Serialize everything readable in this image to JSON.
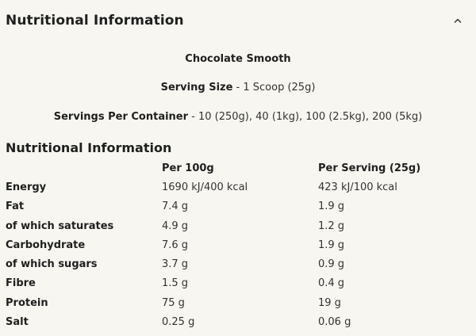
{
  "accordion": {
    "title": "Nutritional Information",
    "toggle_icon": "chevron-up-icon"
  },
  "product": {
    "name": "Chocolate Smooth",
    "serving_size_label": "Serving Size",
    "serving_size_value": "- 1 Scoop (25g)",
    "servings_label": "Servings Per Container",
    "servings_value": "- 10 (250g), 40 (1kg), 100 (2.5kg), 200 (5kg)"
  },
  "table": {
    "title": "Nutritional Information",
    "col_per_100g": "Per 100g",
    "col_per_serving": "Per Serving (25g)",
    "rows": [
      {
        "name": "Energy",
        "per100": "1690 kJ/400 kcal",
        "serving": "423 kJ/100 kcal"
      },
      {
        "name": "Fat",
        "per100": "7.4 g",
        "serving": "1.9 g"
      },
      {
        "name": "of which saturates",
        "per100": "4.9 g",
        "serving": "1.2 g"
      },
      {
        "name": "Carbohydrate",
        "per100": "7.6 g",
        "serving": "1.9 g"
      },
      {
        "name": "of which sugars",
        "per100": "3.7 g",
        "serving": "0.9 g"
      },
      {
        "name": "Fibre",
        "per100": "1.5 g",
        "serving": "0.4 g"
      },
      {
        "name": "Protein",
        "per100": "75 g",
        "serving": "19 g"
      },
      {
        "name": "Salt",
        "per100": "0.25 g",
        "serving": "0.06 g"
      }
    ]
  }
}
